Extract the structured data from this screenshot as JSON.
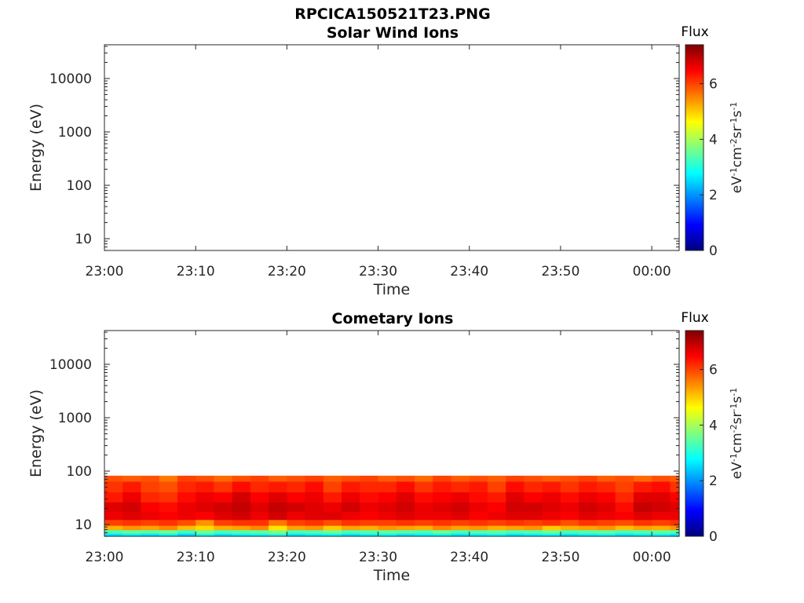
{
  "title": "RPCICA150521T23.PNG",
  "colorscale": {
    "colors": [
      "#00007f",
      "#0000ff",
      "#007fff",
      "#00ffff",
      "#7fff7f",
      "#ffff00",
      "#ff7f00",
      "#ff0000",
      "#7f0000"
    ],
    "range": [
      0,
      7.4
    ],
    "ticks": [
      "0",
      "2",
      "4",
      "6"
    ],
    "label_main": "Flux",
    "unit_parts": [
      "eV",
      "-1",
      "cm",
      "-2",
      "sr",
      "-1",
      "s",
      "-1"
    ]
  },
  "chart_data": [
    {
      "type": "heatmap",
      "title": "Solar Wind Ions",
      "xlabel": "Time",
      "ylabel": "Energy (eV)",
      "yscale": "log",
      "ylim": [
        6,
        45000
      ],
      "xlim": [
        "23:00",
        "00:03"
      ],
      "x_ticks": [
        "23:00",
        "23:10",
        "23:20",
        "23:30",
        "23:40",
        "23:50",
        "00:00"
      ],
      "y_ticks": [
        "10",
        "100",
        "1000",
        "10000"
      ],
      "data": "empty"
    },
    {
      "type": "heatmap",
      "title": "Cometary Ions",
      "xlabel": "Time",
      "ylabel": "Energy (eV)",
      "yscale": "log",
      "ylim": [
        6,
        45000
      ],
      "xlim": [
        "23:00",
        "00:03"
      ],
      "x_ticks": [
        "23:00",
        "23:10",
        "23:20",
        "23:30",
        "23:40",
        "23:50",
        "00:00"
      ],
      "y_ticks": [
        "10",
        "100",
        "1000",
        "10000"
      ],
      "energy_bins_eV": [
        80,
        50,
        32,
        21,
        14,
        10.5,
        8.5,
        7.2,
        6.3
      ],
      "columns": [
        {
          "time": "23:00",
          "flux": [
            5.9,
            6.1,
            6.3,
            6.7,
            6.6,
            6.0,
            5.2,
            3.3,
            2.6
          ]
        },
        {
          "time": "23:02",
          "flux": [
            5.8,
            6.3,
            6.6,
            6.8,
            6.7,
            6.1,
            5.4,
            3.5,
            2.7
          ]
        },
        {
          "time": "23:04",
          "flux": [
            5.9,
            6.0,
            6.2,
            6.5,
            6.6,
            6.0,
            5.3,
            3.4,
            2.6
          ]
        },
        {
          "time": "23:06",
          "flux": [
            5.6,
            5.9,
            6.1,
            6.4,
            6.5,
            6.1,
            5.5,
            3.6,
            2.8
          ]
        },
        {
          "time": "23:08",
          "flux": [
            6.0,
            6.2,
            6.4,
            6.6,
            6.6,
            5.9,
            5.1,
            3.2,
            2.5
          ]
        },
        {
          "time": "23:10",
          "flux": [
            5.9,
            6.3,
            6.6,
            6.7,
            6.5,
            5.4,
            4.9,
            3.6,
            2.9
          ]
        },
        {
          "time": "23:12",
          "flux": [
            5.7,
            6.1,
            6.5,
            6.8,
            6.7,
            6.0,
            5.2,
            3.3,
            2.6
          ]
        },
        {
          "time": "23:14",
          "flux": [
            5.9,
            6.4,
            6.8,
            6.9,
            6.8,
            6.1,
            5.3,
            3.4,
            2.7
          ]
        },
        {
          "time": "23:16",
          "flux": [
            6.0,
            6.2,
            6.5,
            6.7,
            6.6,
            6.1,
            5.5,
            3.5,
            2.8
          ]
        },
        {
          "time": "23:18",
          "flux": [
            5.8,
            6.3,
            6.7,
            6.9,
            6.8,
            5.6,
            4.8,
            3.7,
            3.0
          ]
        },
        {
          "time": "23:20",
          "flux": [
            5.9,
            6.2,
            6.5,
            6.8,
            6.6,
            6.0,
            5.3,
            3.3,
            2.6
          ]
        },
        {
          "time": "23:22",
          "flux": [
            6.0,
            6.4,
            6.6,
            6.7,
            6.7,
            6.1,
            5.4,
            3.4,
            2.7
          ]
        },
        {
          "time": "23:24",
          "flux": [
            5.8,
            6.0,
            6.3,
            6.6,
            6.7,
            5.9,
            5.0,
            3.6,
            2.8
          ]
        },
        {
          "time": "23:26",
          "flux": [
            5.9,
            6.3,
            6.6,
            6.8,
            6.6,
            6.1,
            5.3,
            3.3,
            2.6
          ]
        },
        {
          "time": "23:28",
          "flux": [
            6.0,
            6.2,
            6.4,
            6.6,
            6.5,
            6.0,
            5.2,
            3.4,
            2.7
          ]
        },
        {
          "time": "23:30",
          "flux": [
            5.8,
            6.2,
            6.5,
            6.7,
            6.6,
            6.0,
            5.4,
            3.5,
            2.8
          ]
        },
        {
          "time": "23:32",
          "flux": [
            5.9,
            6.4,
            6.7,
            6.8,
            6.7,
            6.1,
            5.3,
            3.4,
            2.6
          ]
        },
        {
          "time": "23:34",
          "flux": [
            5.7,
            6.1,
            6.4,
            6.6,
            6.6,
            6.0,
            5.2,
            3.3,
            2.7
          ]
        },
        {
          "time": "23:36",
          "flux": [
            6.0,
            6.3,
            6.5,
            6.7,
            6.6,
            6.1,
            5.5,
            3.6,
            2.8
          ]
        },
        {
          "time": "23:38",
          "flux": [
            5.8,
            6.2,
            6.6,
            6.8,
            6.7,
            6.0,
            5.3,
            3.3,
            2.6
          ]
        },
        {
          "time": "23:40",
          "flux": [
            5.9,
            6.3,
            6.4,
            6.6,
            6.5,
            6.1,
            5.4,
            3.4,
            2.7
          ]
        },
        {
          "time": "23:42",
          "flux": [
            5.8,
            6.0,
            6.3,
            6.5,
            6.6,
            6.0,
            5.2,
            3.5,
            2.8
          ]
        },
        {
          "time": "23:44",
          "flux": [
            6.0,
            6.4,
            6.7,
            6.8,
            6.7,
            6.1,
            5.3,
            3.3,
            2.6
          ]
        },
        {
          "time": "23:46",
          "flux": [
            5.9,
            6.2,
            6.5,
            6.8,
            6.7,
            6.0,
            5.4,
            3.4,
            2.7
          ]
        },
        {
          "time": "23:48",
          "flux": [
            5.8,
            6.3,
            6.6,
            6.7,
            6.6,
            6.1,
            5.0,
            3.6,
            2.8
          ]
        },
        {
          "time": "23:50",
          "flux": [
            5.9,
            6.1,
            6.4,
            6.6,
            6.5,
            5.9,
            5.2,
            3.3,
            2.6
          ]
        },
        {
          "time": "23:52",
          "flux": [
            6.0,
            6.3,
            6.6,
            6.8,
            6.7,
            6.1,
            5.3,
            3.4,
            2.7
          ]
        },
        {
          "time": "23:54",
          "flux": [
            5.8,
            6.2,
            6.5,
            6.7,
            6.6,
            6.0,
            5.4,
            3.5,
            2.8
          ]
        },
        {
          "time": "23:56",
          "flux": [
            5.9,
            6.0,
            6.2,
            6.4,
            6.5,
            5.9,
            5.1,
            3.3,
            2.6
          ]
        },
        {
          "time": "23:58",
          "flux": [
            5.7,
            6.3,
            6.7,
            6.9,
            6.7,
            6.1,
            5.3,
            3.4,
            2.7
          ]
        },
        {
          "time": "00:00",
          "flux": [
            5.9,
            6.4,
            6.7,
            6.8,
            6.6,
            6.0,
            5.2,
            3.5,
            2.8
          ]
        },
        {
          "time": "00:02",
          "flux": [
            5.8,
            6.1,
            6.5,
            6.7,
            6.6,
            6.1,
            5.4,
            3.4,
            2.6
          ]
        }
      ]
    }
  ]
}
